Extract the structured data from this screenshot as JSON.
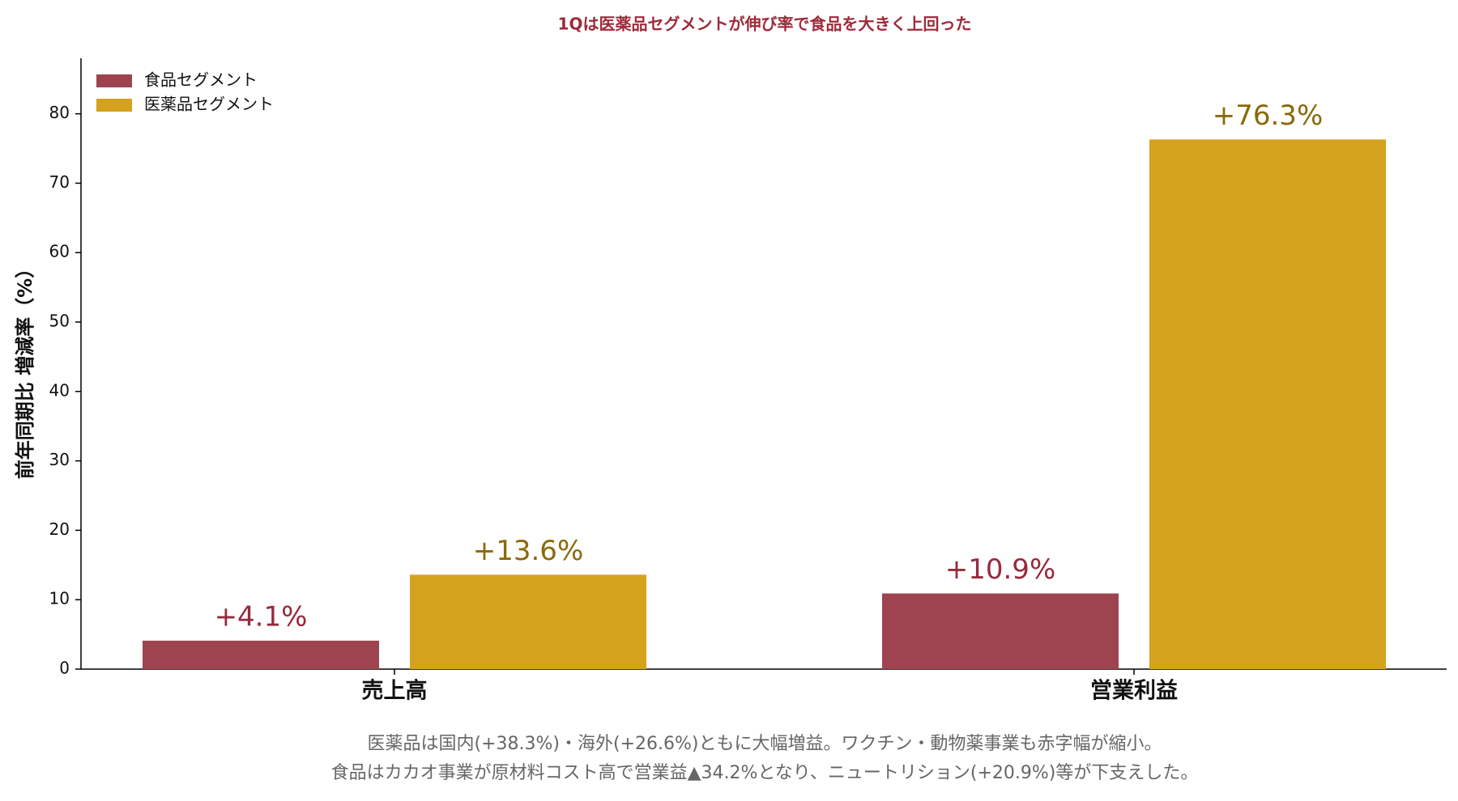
{
  "chart_data": {
    "type": "bar",
    "title": "1Qは医薬品セグメントが伸び率で食品を大きく上回った",
    "y_label": "前年同期比 増減率（%）",
    "categories": [
      "売上高",
      "営業利益"
    ],
    "series": [
      {
        "name": "食品セグメント",
        "color": "#9e4350",
        "label_color": "#962a3c",
        "values": [
          4.1,
          10.9
        ],
        "value_labels": [
          "+4.1%",
          "+10.9%"
        ]
      },
      {
        "name": "医薬品セグメント",
        "color": "#d4a21c",
        "label_color": "#8a6a0c",
        "values": [
          13.6,
          76.3
        ],
        "value_labels": [
          "+13.6%",
          "+76.3%"
        ]
      }
    ],
    "ylim": [
      0,
      88
    ],
    "yticks": [
      0,
      10,
      20,
      30,
      40,
      50,
      60,
      70,
      80
    ],
    "grid": false,
    "legend": "upper left",
    "annotations": [
      "医薬品は国内(+38.3%)・海外(+26.6%)ともに大幅増益。ワクチン・動物薬事業も赤字幅が縮小。",
      "食品はカカオ事業が原材料コスト高で営業益▲34.2%となり、ニュートリション(+20.9%)等が下支えした。"
    ]
  }
}
